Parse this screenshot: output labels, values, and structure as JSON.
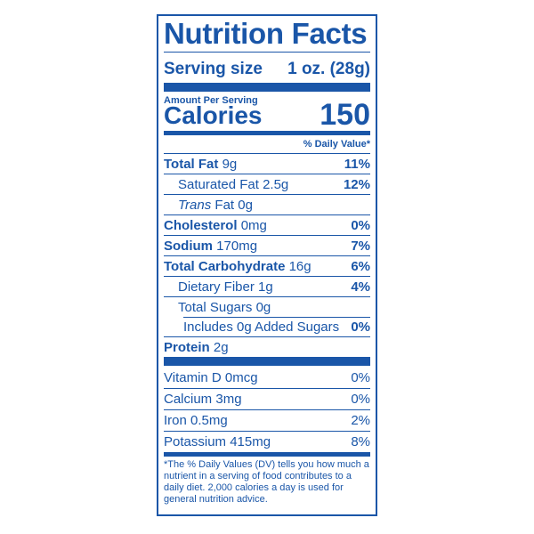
{
  "label": {
    "title": "Nutrition Facts",
    "serving_label": "Serving size",
    "serving_value": "1 oz. (28g)",
    "amount_per_serving": "Amount Per Serving",
    "calories_label": "Calories",
    "calories_value": "150",
    "dv_header": "% Daily Value*",
    "nutrients": {
      "total_fat": {
        "name": "Total Fat",
        "amount": "9g",
        "dv": "11%"
      },
      "saturated_fat": {
        "name": "Saturated Fat",
        "amount": "2.5g",
        "dv": "12%"
      },
      "trans_fat": {
        "name_italic": "Trans",
        "name": "Fat",
        "amount": "0g"
      },
      "cholesterol": {
        "name": "Cholesterol",
        "amount": "0mg",
        "dv": "0%"
      },
      "sodium": {
        "name": "Sodium",
        "amount": "170mg",
        "dv": "7%"
      },
      "total_carb": {
        "name": "Total Carbohydrate",
        "amount": "16g",
        "dv": "6%"
      },
      "dietary_fiber": {
        "name": "Dietary Fiber",
        "amount": "1g",
        "dv": "4%"
      },
      "total_sugars": {
        "name": "Total Sugars",
        "amount": "0g"
      },
      "added_sugars": {
        "name": "Includes 0g Added Sugars",
        "dv": "0%"
      },
      "protein": {
        "name": "Protein",
        "amount": "2g"
      }
    },
    "vitamins": [
      {
        "name": "Vitamin D",
        "amount": "0mcg",
        "dv": "0%"
      },
      {
        "name": "Calcium",
        "amount": "3mg",
        "dv": "0%"
      },
      {
        "name": "Iron",
        "amount": "0.5mg",
        "dv": "2%"
      },
      {
        "name": "Potassium",
        "amount": "415mg",
        "dv": "8%"
      }
    ],
    "footnote": "*The % Daily Values (DV) tells you how much a nutrient in a serving of food contributes to a daily diet. 2,000 calories a day is used for general nutrition advice."
  },
  "colors": {
    "ink": "#1a56a8",
    "background": "#ffffff"
  }
}
